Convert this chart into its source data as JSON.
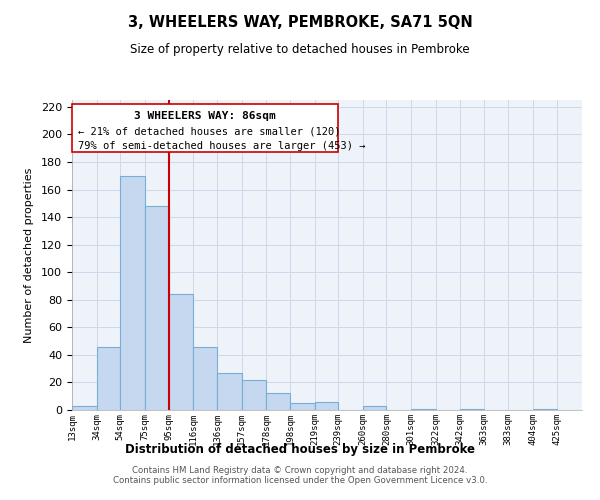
{
  "title": "3, WHEELERS WAY, PEMBROKE, SA71 5QN",
  "subtitle": "Size of property relative to detached houses in Pembroke",
  "xlabel": "Distribution of detached houses by size in Pembroke",
  "ylabel": "Number of detached properties",
  "bar_labels": [
    "13sqm",
    "34sqm",
    "54sqm",
    "75sqm",
    "95sqm",
    "116sqm",
    "136sqm",
    "157sqm",
    "178sqm",
    "198sqm",
    "219sqm",
    "239sqm",
    "260sqm",
    "280sqm",
    "301sqm",
    "322sqm",
    "342sqm",
    "363sqm",
    "383sqm",
    "404sqm",
    "425sqm"
  ],
  "bar_values": [
    3,
    46,
    170,
    148,
    84,
    46,
    27,
    22,
    12,
    5,
    6,
    0,
    3,
    0,
    1,
    0,
    1,
    0,
    0,
    1,
    0
  ],
  "bar_color": "#c5d8f0",
  "bar_edge_color": "#7aadd4",
  "vline_x_idx": 4,
  "vline_color": "#cc0000",
  "ylim": [
    0,
    225
  ],
  "yticks": [
    0,
    20,
    40,
    60,
    80,
    100,
    120,
    140,
    160,
    180,
    200,
    220
  ],
  "annotation_title": "3 WHEELERS WAY: 86sqm",
  "annotation_line1": "← 21% of detached houses are smaller (120)",
  "annotation_line2": "79% of semi-detached houses are larger (453) →",
  "footer_line1": "Contains HM Land Registry data © Crown copyright and database right 2024.",
  "footer_line2": "Contains public sector information licensed under the Open Government Licence v3.0.",
  "bin_edges": [
    13,
    34,
    54,
    75,
    95,
    116,
    136,
    157,
    178,
    198,
    219,
    239,
    260,
    280,
    301,
    322,
    342,
    363,
    383,
    404,
    425,
    446
  ],
  "grid_color": "#ccd9ea",
  "background_color": "#ffffff",
  "plot_bg_color": "#eef3fa"
}
